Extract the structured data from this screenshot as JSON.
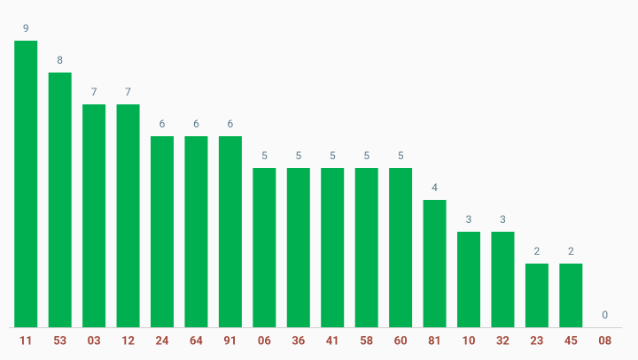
{
  "chart_data": {
    "type": "bar",
    "categories": [
      "11",
      "53",
      "03",
      "12",
      "24",
      "64",
      "91",
      "06",
      "36",
      "41",
      "58",
      "60",
      "81",
      "10",
      "32",
      "23",
      "45",
      "08"
    ],
    "values": [
      9,
      8,
      7,
      7,
      6,
      6,
      6,
      5,
      5,
      5,
      5,
      5,
      4,
      3,
      3,
      2,
      2,
      0
    ],
    "color": "#00b050"
  }
}
